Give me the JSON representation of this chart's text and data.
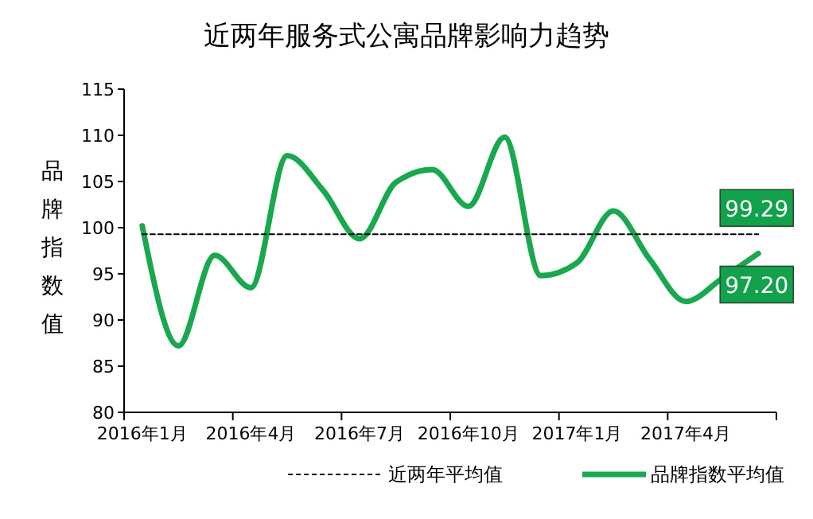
{
  "chart_data": {
    "type": "line",
    "title": "近两年服务式公寓品牌影响力趋势",
    "ylabel": "品牌指数值",
    "categories": [
      "2016年1月",
      null,
      null,
      "2016年4月",
      null,
      null,
      "2016年7月",
      null,
      null,
      "2016年10月",
      null,
      null,
      "2017年1月",
      null,
      null,
      "2017年4月",
      null,
      null
    ],
    "series": [
      {
        "name": "近两年平均值",
        "color": "#000000",
        "line_style": "dashed",
        "values": [
          99.29,
          99.29,
          99.29,
          99.29,
          99.29,
          99.29,
          99.29,
          99.29,
          99.29,
          99.29,
          99.29,
          99.29,
          99.29,
          99.29,
          99.29,
          99.29,
          99.29,
          99.29
        ],
        "value_labels": [
          null,
          null,
          null,
          null,
          null,
          null,
          null,
          null,
          null,
          null,
          null,
          null,
          null,
          null,
          null,
          null,
          null,
          "99.29"
        ]
      },
      {
        "name": "品牌指数平均值",
        "color": "#1aa84f",
        "line_style": "solid",
        "values": [
          100.2,
          87.2,
          97,
          93.5,
          107.8,
          104,
          98.8,
          104.9,
          106.3,
          102.3,
          109.8,
          94.8,
          96.2,
          101.8,
          96.6,
          92,
          94.5,
          97.2
        ],
        "value_labels": [
          null,
          null,
          null,
          null,
          null,
          null,
          null,
          null,
          null,
          null,
          null,
          null,
          null,
          null,
          null,
          null,
          null,
          "97.20"
        ]
      }
    ],
    "ylim": [
      80,
      115
    ],
    "yticks": [
      80,
      85,
      90,
      95,
      100,
      105,
      110,
      115
    ],
    "grid": false,
    "legend": "bottom",
    "marker": "none"
  }
}
